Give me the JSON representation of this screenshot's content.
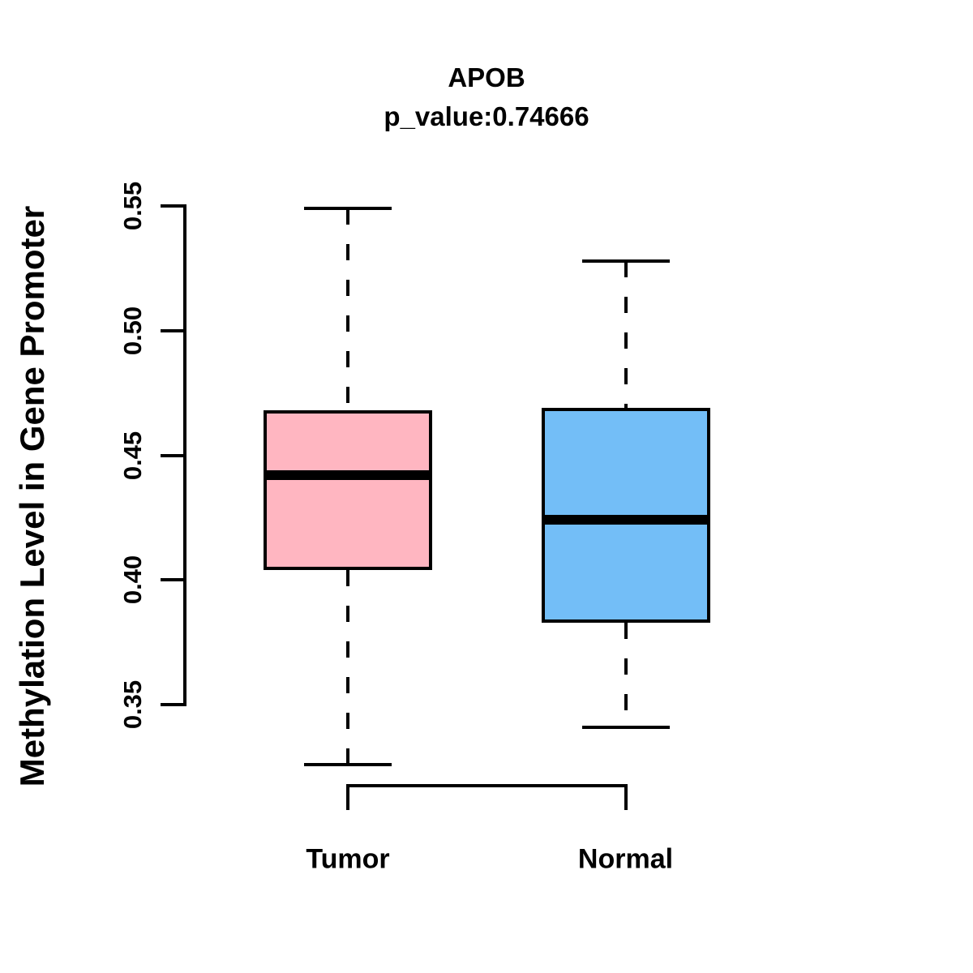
{
  "title": "APOB",
  "subtitle": "p_value:0.74666",
  "y_axis": {
    "label": "Methylation Level in Gene Promoter",
    "tick_labels": [
      "0.55",
      "0.50",
      "0.45",
      "0.40",
      "0.35"
    ]
  },
  "x_axis": {
    "categories": [
      "Tumor",
      "Normal"
    ]
  },
  "colors": {
    "tumor_fill": "#FFB6C1",
    "normal_fill": "#73BEF7",
    "line": "#000000",
    "background": "#FFFFFF"
  },
  "chart_data": {
    "type": "boxplot",
    "title": "APOB",
    "subtitle": "p_value:0.74666",
    "gene": "APOB",
    "p_value": 0.74666,
    "ylabel": "Methylation Level in Gene Promoter",
    "xlabel": "",
    "categories": [
      "Tumor",
      "Normal"
    ],
    "yticks": [
      0.35,
      0.4,
      0.45,
      0.5,
      0.55
    ],
    "ylim": [
      0.32,
      0.55
    ],
    "grid": false,
    "legend": "none",
    "series": [
      {
        "name": "Tumor",
        "fill": "#FFB6C1",
        "whisker_low": 0.326,
        "q1": 0.404,
        "median": 0.442,
        "q3": 0.468,
        "whisker_high": 0.549
      },
      {
        "name": "Normal",
        "fill": "#73BEF7",
        "whisker_low": 0.341,
        "q1": 0.383,
        "median": 0.424,
        "q3": 0.469,
        "whisker_high": 0.528
      }
    ]
  }
}
